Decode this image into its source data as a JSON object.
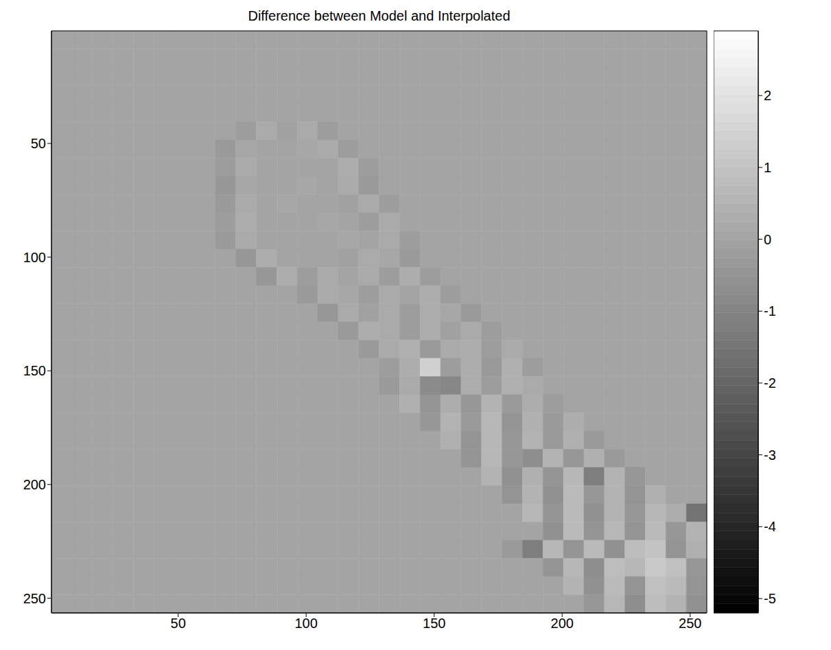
{
  "chart_data": {
    "type": "heatmap",
    "title": "Difference between Model and Interpolated",
    "xlim": [
      0.5,
      256.5
    ],
    "ylim": [
      0.5,
      256.5
    ],
    "xticks": [
      50,
      100,
      150,
      200,
      250
    ],
    "yticks": [
      50,
      100,
      150,
      200,
      250
    ],
    "clim": [
      -5.2,
      2.9
    ],
    "cticks": [
      -5,
      -4,
      -3,
      -2,
      -1,
      0,
      1,
      2
    ],
    "cells": [
      [
        0,
        0,
        0,
        0,
        0,
        0,
        0,
        0,
        0,
        0,
        0,
        0,
        0,
        0,
        0,
        0,
        0,
        0,
        0,
        0,
        0,
        0,
        0,
        0,
        0,
        0,
        0,
        0,
        0,
        0,
        0,
        0
      ],
      [
        0,
        0,
        0,
        0,
        0,
        0,
        0,
        0,
        0,
        0,
        0,
        0,
        0,
        0,
        0,
        0,
        0,
        0,
        0,
        0,
        0,
        0,
        0,
        0,
        0,
        0,
        0,
        0,
        0,
        0,
        0,
        0
      ],
      [
        0,
        0,
        0,
        0,
        0,
        0,
        0,
        0,
        0,
        0,
        0,
        0,
        0,
        0,
        0,
        0,
        0,
        0,
        0,
        0,
        0,
        0,
        0,
        0,
        0,
        0,
        0,
        0,
        0,
        0,
        0,
        0
      ],
      [
        0,
        0,
        0,
        0,
        0,
        0,
        0,
        0,
        0,
        0,
        0,
        0,
        0,
        0,
        0,
        0,
        0,
        0,
        0,
        0,
        0,
        0,
        0,
        0,
        0,
        0,
        0,
        0,
        0,
        0,
        0,
        0
      ],
      [
        0,
        0,
        0,
        0,
        0,
        0,
        0,
        0,
        0,
        0,
        0,
        0,
        0,
        0,
        0,
        0,
        0,
        0,
        0,
        0,
        0,
        0,
        0,
        0,
        0,
        0,
        0,
        0,
        0,
        0,
        0,
        0
      ],
      [
        0,
        0,
        0,
        0,
        0,
        0,
        0,
        0,
        0,
        -0.2,
        0.2,
        -0.1,
        0.2,
        -0.2,
        0,
        0,
        0,
        0,
        0,
        0,
        0,
        0,
        0,
        0,
        0,
        0,
        0,
        0,
        0,
        0,
        0,
        0
      ],
      [
        0,
        0,
        0,
        0,
        0,
        0,
        0,
        0,
        -0.3,
        0.1,
        0,
        0,
        0.1,
        0.2,
        -0.2,
        0,
        0,
        0,
        0,
        0,
        0,
        0,
        0,
        0,
        0,
        0,
        0,
        0,
        0,
        0,
        0,
        0
      ],
      [
        0,
        0,
        0,
        0,
        0,
        0,
        0,
        0,
        -0.2,
        0.2,
        0,
        0,
        0,
        0,
        0.3,
        -0.2,
        0,
        0,
        0,
        0,
        0,
        0,
        0,
        0,
        0,
        0,
        0,
        0,
        0,
        0,
        0,
        0
      ],
      [
        0,
        0,
        0,
        0,
        0,
        0,
        0,
        0,
        -0.4,
        0.1,
        0,
        0,
        0.1,
        0,
        0.2,
        -0.3,
        0,
        0,
        0,
        0,
        0,
        0,
        0,
        0,
        0,
        0,
        0,
        0,
        0,
        0,
        0,
        0
      ],
      [
        0,
        0,
        0,
        0,
        0,
        0,
        0,
        0,
        -0.3,
        0.2,
        0,
        0.1,
        0,
        0,
        -0.1,
        0.2,
        -0.2,
        0,
        0,
        0,
        0,
        0,
        0,
        0,
        0,
        0,
        0,
        0,
        0,
        0,
        0,
        0
      ],
      [
        0,
        0,
        0,
        0,
        0,
        0,
        0,
        0,
        -0.2,
        0.3,
        0,
        0,
        0,
        0.1,
        0,
        -0.2,
        0.2,
        0,
        0,
        0,
        0,
        0,
        0,
        0,
        0,
        0,
        0,
        0,
        0,
        0,
        0,
        0
      ],
      [
        0,
        0,
        0,
        0,
        0,
        0,
        0,
        0,
        -0.3,
        0.2,
        0,
        0,
        0,
        0,
        0.1,
        0,
        0.2,
        -0.2,
        0,
        0,
        0,
        0,
        0,
        0,
        0,
        0,
        0,
        0,
        0,
        0,
        0,
        0
      ],
      [
        0,
        0,
        0,
        0,
        0,
        0,
        0,
        0,
        0,
        -0.4,
        0.3,
        0,
        0,
        0,
        -0.1,
        0.2,
        0.1,
        -0.3,
        0,
        0,
        0,
        0,
        0,
        0,
        0,
        0,
        0,
        0,
        0,
        0,
        0,
        0
      ],
      [
        0,
        0,
        0,
        0,
        0,
        0,
        0,
        0,
        0,
        0,
        -0.4,
        0.3,
        -0.2,
        0.2,
        0,
        0.2,
        -0.2,
        0.3,
        -0.2,
        0,
        0,
        0,
        0,
        0,
        0,
        0,
        0,
        0,
        0,
        0,
        0,
        0
      ],
      [
        0,
        0,
        0,
        0,
        0,
        0,
        0,
        0,
        0,
        0,
        0,
        0,
        -0.3,
        0.2,
        0.1,
        -0.2,
        0.2,
        0,
        0.3,
        -0.2,
        0,
        0,
        0,
        0,
        0,
        0,
        0,
        0,
        0,
        0,
        0,
        0
      ],
      [
        0,
        0,
        0,
        0,
        0,
        0,
        0,
        0,
        0,
        0,
        0,
        0,
        0,
        -0.4,
        0.2,
        -0.1,
        0.2,
        -0.2,
        0.3,
        0.1,
        -0.3,
        0,
        0,
        0,
        0,
        0,
        0,
        0,
        0,
        0,
        0,
        0
      ],
      [
        0,
        0,
        0,
        0,
        0,
        0,
        0,
        0,
        0,
        0,
        0,
        0,
        0,
        0,
        -0.3,
        0.3,
        0.2,
        -0.2,
        0.3,
        -0.1,
        0.2,
        -0.2,
        0,
        0,
        0,
        0,
        0,
        0,
        0,
        0,
        0,
        0
      ],
      [
        0,
        0,
        0,
        0,
        0,
        0,
        0,
        0,
        0,
        0,
        0,
        0,
        0,
        0,
        0,
        -0.3,
        0.2,
        0.4,
        -0.3,
        0.2,
        0.3,
        -0.2,
        0.2,
        0,
        0,
        0,
        0,
        0,
        0,
        0,
        0,
        0
      ],
      [
        0,
        0,
        0,
        0,
        0,
        0,
        0,
        0,
        0,
        0,
        0,
        0,
        0,
        0,
        0,
        0,
        -0.2,
        0.3,
        1.4,
        -0.2,
        0.3,
        -0.3,
        0.4,
        -0.2,
        0,
        0,
        0,
        0,
        0,
        0,
        0,
        0
      ],
      [
        0,
        0,
        0,
        0,
        0,
        0,
        0,
        0,
        0,
        0,
        0,
        0,
        0,
        0,
        0,
        0,
        -0.3,
        0.2,
        -0.8,
        -0.9,
        0.3,
        -0.2,
        0.4,
        0.2,
        0,
        0,
        0,
        0,
        0,
        0,
        0,
        0
      ],
      [
        0,
        0,
        0,
        0,
        0,
        0,
        0,
        0,
        0,
        0,
        0,
        0,
        0,
        0,
        0,
        0,
        0,
        0.4,
        -0.5,
        0.3,
        -0.4,
        0.5,
        -0.3,
        0.3,
        -0.2,
        0,
        0,
        0,
        0,
        0,
        0,
        0
      ],
      [
        0,
        0,
        0,
        0,
        0,
        0,
        0,
        0,
        0,
        0,
        0,
        0,
        0,
        0,
        0,
        0,
        0,
        0,
        -0.4,
        0.5,
        -0.3,
        0.6,
        -0.5,
        0.4,
        -0.3,
        0.3,
        0,
        0,
        0,
        0,
        0,
        0
      ],
      [
        0,
        0,
        0,
        0,
        0,
        0,
        0,
        0,
        0,
        0,
        0,
        0,
        0,
        0,
        0,
        0,
        0,
        0,
        0,
        0.4,
        -0.5,
        0.6,
        -0.4,
        0.5,
        -0.3,
        0.4,
        -0.3,
        0,
        0,
        0,
        0,
        0
      ],
      [
        0,
        0,
        0,
        0,
        0,
        0,
        0,
        0,
        0,
        0,
        0,
        0,
        0,
        0,
        0,
        0,
        0,
        0,
        0,
        0,
        -0.5,
        0.6,
        -0.4,
        -0.7,
        0.5,
        -0.4,
        0.4,
        -0.3,
        0,
        0,
        0,
        0
      ],
      [
        0,
        0,
        0,
        0,
        0,
        0,
        0,
        0,
        0,
        0,
        0,
        0,
        0,
        0,
        0,
        0,
        0,
        0,
        0,
        0,
        0,
        0.5,
        -0.6,
        0.4,
        -0.5,
        0.6,
        -1.2,
        0.5,
        -0.4,
        0,
        0,
        0
      ],
      [
        0,
        0,
        0,
        0,
        0,
        0,
        0,
        0,
        0,
        0,
        0,
        0,
        0,
        0,
        0,
        0,
        0,
        0,
        0,
        0,
        0,
        0,
        -0.5,
        0.5,
        -0.6,
        0.7,
        -0.4,
        0.5,
        -0.5,
        0.4,
        0,
        0
      ],
      [
        0,
        0,
        0,
        0,
        0,
        0,
        0,
        0,
        0,
        0,
        0,
        0,
        0,
        0,
        0,
        0,
        0,
        0,
        0,
        0,
        0,
        0,
        0,
        0.6,
        -0.5,
        0.7,
        -0.6,
        0.5,
        -0.4,
        0.6,
        0.3,
        -1.5
      ],
      [
        0,
        0,
        0,
        0,
        0,
        0,
        0,
        0,
        0,
        0,
        0,
        0,
        0,
        0,
        0,
        0,
        0,
        0,
        0,
        0,
        0,
        0,
        0,
        0,
        -0.6,
        0.7,
        -0.5,
        0.6,
        -0.5,
        0.7,
        -0.4,
        0.5
      ],
      [
        0,
        0,
        0,
        0,
        0,
        0,
        0,
        0,
        0,
        0,
        0,
        0,
        0,
        0,
        0,
        0,
        0,
        0,
        0,
        0,
        0,
        0,
        -0.3,
        -1.2,
        0.6,
        -0.5,
        0.7,
        -0.6,
        0.8,
        1.0,
        -0.5,
        0.4
      ],
      [
        0,
        0,
        0,
        0,
        0,
        0,
        0,
        0,
        0,
        0,
        0,
        0,
        0,
        0,
        0,
        0,
        0,
        0,
        0,
        0,
        0,
        0,
        0,
        0,
        -0.5,
        0.6,
        -0.7,
        0.8,
        0.6,
        1.2,
        0.9,
        -0.4
      ],
      [
        0,
        0,
        0,
        0,
        0,
        0,
        0,
        0,
        0,
        0,
        0,
        0,
        0,
        0,
        0,
        0,
        0,
        0,
        0,
        0,
        0,
        0,
        0,
        0,
        0,
        0.5,
        -0.6,
        0.7,
        -0.5,
        0.9,
        0.7,
        -0.5
      ],
      [
        0,
        0,
        0,
        0,
        0,
        0,
        0,
        0,
        0,
        0,
        0,
        0,
        0,
        0,
        0,
        0,
        0,
        0,
        0,
        0,
        0,
        0,
        0,
        0,
        0,
        0,
        -0.4,
        0.6,
        -0.7,
        0.8,
        0.5,
        -0.6
      ]
    ]
  }
}
